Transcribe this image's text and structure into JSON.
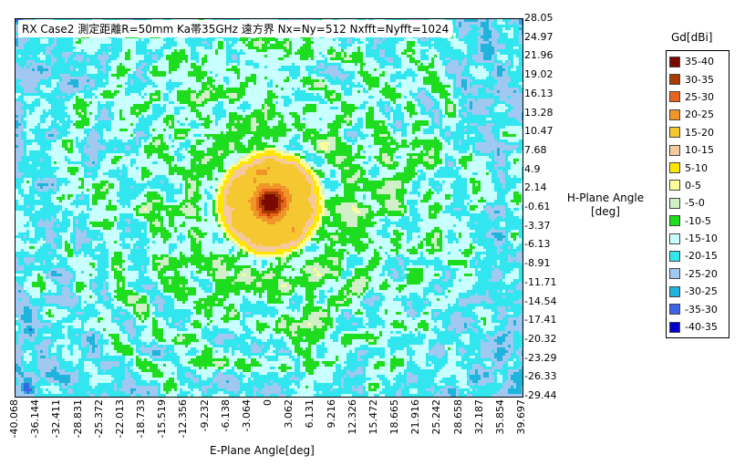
{
  "title": "RX Case2 測定距離R=50mm  Ka帯35GHz  遠方界 Nx=Ny=512  Nxfft=Nyfft=1024",
  "xlabel": "E-Plane Angle[deg]",
  "ylabel_line1": "H-Plane Angle",
  "ylabel_line2": "[deg]",
  "legend_title": "Gd[dBi]",
  "chart_data": {
    "type": "heatmap",
    "title": "RX Case2 測定距離R=50mm  Ka帯35GHz  遠方界 Nx=Ny=512  Nxfft=Nyfft=1024",
    "xlabel": "E-Plane Angle[deg]",
    "ylabel": "H-Plane Angle [deg]",
    "colorbar_label": "Gd[dBi]",
    "x_ticks": [
      "-40.068",
      "-36.144",
      "-32.411",
      "-28.831",
      "-25.372",
      "-22.013",
      "-18.733",
      "-15.519",
      "-12.356",
      "-9.232",
      "-6.138",
      "-3.064",
      "0",
      "3.062",
      "6.131",
      "9.216",
      "12.326",
      "15.472",
      "18.665",
      "21.916",
      "25.242",
      "28.658",
      "32.187",
      "35.854",
      "39.697"
    ],
    "y_ticks": [
      "28.05",
      "24.97",
      "21.96",
      "19.02",
      "16.13",
      "13.28",
      "10.47",
      "7.68",
      "4.9",
      "2.14",
      "-0.61",
      "-3.37",
      "-6.13",
      "-8.91",
      "-11.71",
      "-14.54",
      "-17.41",
      "-20.32",
      "-23.29",
      "-26.33",
      "-29.44"
    ],
    "xlim": [
      -40.068,
      39.697
    ],
    "ylim": [
      -29.44,
      28.05
    ],
    "levels": [
      {
        "label": "35-40",
        "color": "#7a0a00"
      },
      {
        "label": "30-35",
        "color": "#a83c00"
      },
      {
        "label": "25-30",
        "color": "#e8641e"
      },
      {
        "label": "20-25",
        "color": "#f09628"
      },
      {
        "label": "15-20",
        "color": "#f5c832"
      },
      {
        "label": "10-15",
        "color": "#f5c8a0"
      },
      {
        "label": "5-10",
        "color": "#ffe600"
      },
      {
        "label": "0-5",
        "color": "#ffff99"
      },
      {
        "label": "-5-0",
        "color": "#d2f0c8"
      },
      {
        "label": "-10-5",
        "color": "#1edc1e"
      },
      {
        "label": "-15-10",
        "color": "#c8ffff"
      },
      {
        "label": "-20-15",
        "color": "#32e6f0"
      },
      {
        "label": "-25-20",
        "color": "#a0c8f0"
      },
      {
        "label": "-30-25",
        "color": "#1eb4dc"
      },
      {
        "label": "-35-30",
        "color": "#3c64e6"
      },
      {
        "label": "-40-35",
        "color": "#0000c8"
      }
    ],
    "peak_level": "35-40",
    "peak_x": 0,
    "peak_y": 0
  }
}
